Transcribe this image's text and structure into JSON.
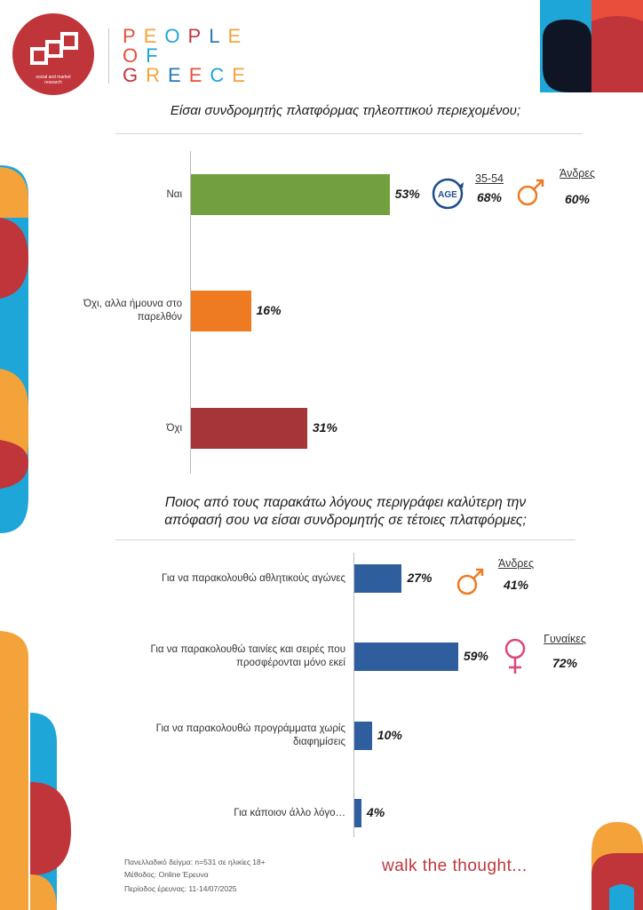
{
  "brand": {
    "logo_sub_line1": "social and market",
    "logo_sub_line2": "research",
    "title_lines": [
      "PEOPLE",
      "OF",
      "GREECE"
    ],
    "letter_colors": [
      "#e94e3c",
      "#f4a33a",
      "#1ea6d8",
      "#c0353a",
      "#2a7ab8",
      "#f4a33a",
      "#e94e3c",
      "#1ea6d8",
      "#c0353a",
      "#f4a33a",
      "#2a7ab8",
      "#e94e3c",
      "#1ea6d8",
      "#f4a33a"
    ]
  },
  "chart_data": [
    {
      "type": "bar",
      "orientation": "horizontal",
      "title": "Είσαι συνδρομητής πλατφόρμας τηλεοπτικού περιεχομένου;",
      "categories": [
        "Ναι",
        "Όχι, αλλα ήμουνα στο παρελθόν",
        "Όχι"
      ],
      "category_lines": [
        [
          "Ναι"
        ],
        [
          "Όχι, αλλα ήμουνα στο",
          "παρελθόν"
        ],
        [
          "Όχι"
        ]
      ],
      "values": [
        53,
        16,
        31
      ],
      "value_labels": [
        "53%",
        "16%",
        "31%"
      ],
      "colors": [
        "#72a03e",
        "#ee7b22",
        "#a6353a"
      ],
      "xlim": [
        0,
        100
      ]
    },
    {
      "type": "bar",
      "orientation": "horizontal",
      "title": "Ποιος από τους παρακάτω λόγους περιγράφει καλύτερη την απόφασή σου να είσαι συνδρομητής σε τέτοιες πλατφόρμες;",
      "title_lines": [
        "Ποιος από τους παρακάτω λόγους περιγράφει καλύτερη την",
        "απόφασή σου να είσαι συνδρομητής σε τέτοιες πλατφόρμες;"
      ],
      "categories": [
        "Για να παρακολουθώ αθλητικούς αγώνες",
        "Για να παρακολουθώ ταινίες και σειρές που προσφέρονται μόνο εκεί",
        "Για να παρακολουθώ προγράμματα χωρίς διαφημίσεις",
        "Για κάποιον άλλο λόγο…"
      ],
      "category_lines": [
        [
          "Για να παρακολουθώ αθλητικούς αγώνες"
        ],
        [
          "Για να παρακολουθώ ταινίες και σειρές που",
          "προσφέρονται μόνο εκεί"
        ],
        [
          "Για να παρακολουθώ προγράμματα χωρίς",
          "διαφημίσεις"
        ],
        [
          "Για κάποιον άλλο λόγο…"
        ]
      ],
      "values": [
        27,
        59,
        10,
        4
      ],
      "value_labels": [
        "27%",
        "59%",
        "10%",
        "4%"
      ],
      "colors": [
        "#2f5e9e",
        "#2f5e9e",
        "#2f5e9e",
        "#2f5e9e"
      ],
      "xlim": [
        0,
        100
      ]
    }
  ],
  "badges": {
    "age": {
      "icon_text": "AGE",
      "label": "35-54",
      "value": "68%"
    },
    "male1": {
      "label": "Άνδρες",
      "value": "60%"
    },
    "male2": {
      "label": "Άνδρες",
      "value": "41%"
    },
    "female": {
      "label": "Γυναίκες",
      "value": "72%"
    }
  },
  "footer": {
    "sample": "Πανελλαδικό δείγμα: n=531 σε ηλικίες 18+",
    "method": "Μέθοδος: Online Έρευνα",
    "period": "Περίοδος έρευνας: 11-14/07/2025",
    "tagline": "walk the thought..."
  },
  "colors": {
    "male": "#ee7b22",
    "female": "#e0457b",
    "accent": "#c0353a"
  }
}
